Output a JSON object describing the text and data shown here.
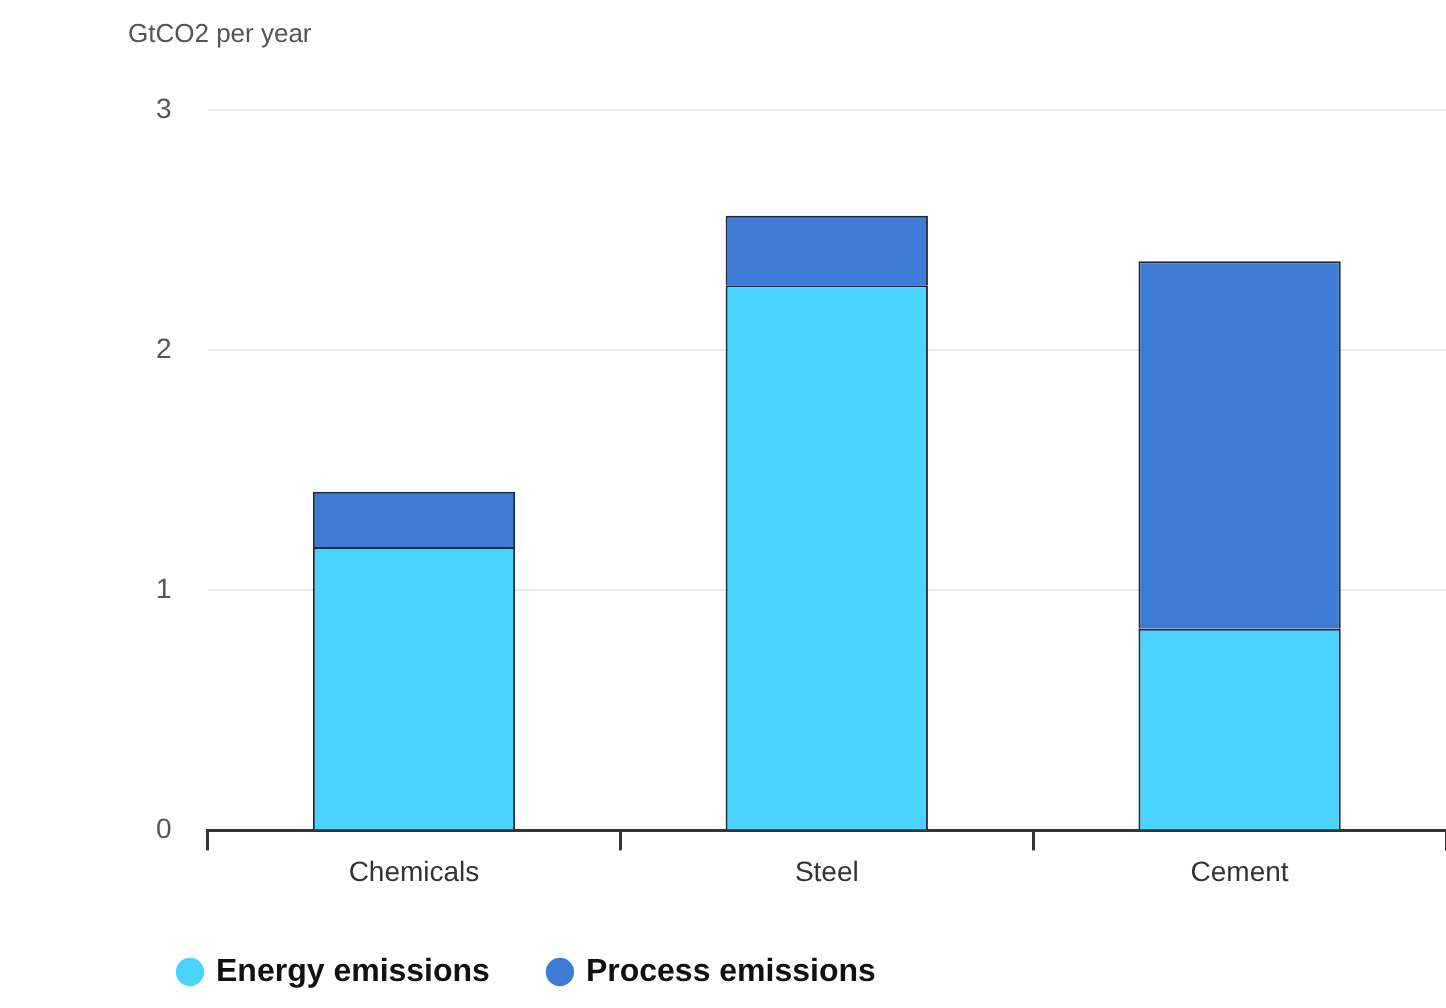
{
  "chart_data": {
    "type": "bar",
    "ylabel": "GtCO2 per year",
    "categories": [
      "Chemicals",
      "Steel",
      "Cement"
    ],
    "stacked": true,
    "series": [
      {
        "name": "Energy emissions",
        "color": "#48d4ff",
        "values": [
          1.18,
          2.27,
          0.84
        ]
      },
      {
        "name": "Process emissions",
        "color": "#3d7bd6",
        "values": [
          0.23,
          0.29,
          1.53
        ]
      }
    ],
    "ylim": [
      0,
      3
    ],
    "yticks": [
      0,
      1,
      2,
      3
    ],
    "grid": "y",
    "legend": "bottom left"
  }
}
